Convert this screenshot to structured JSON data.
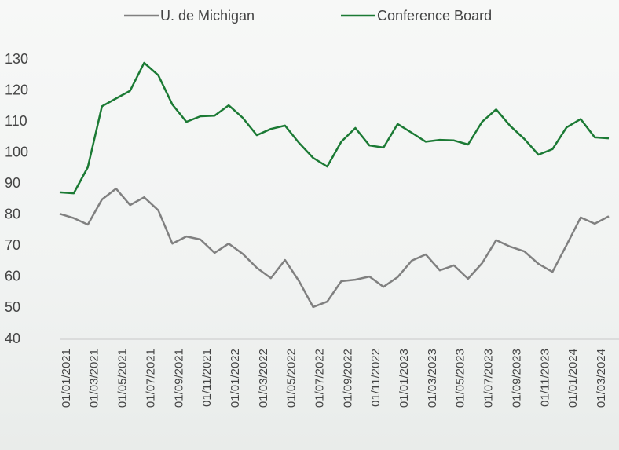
{
  "chart_data": {
    "type": "line",
    "categories": [
      null,
      "01/01/2021",
      null,
      "01/03/2021",
      null,
      "01/05/2021",
      null,
      "01/07/2021",
      null,
      "01/09/2021",
      null,
      "01/11/2021",
      null,
      "01/01/2022",
      null,
      "01/03/2022",
      null,
      "01/05/2022",
      null,
      "01/07/2022",
      null,
      "01/09/2022",
      null,
      "01/11/2022",
      null,
      "01/01/2023",
      null,
      "01/03/2023",
      null,
      "01/05/2023",
      null,
      "01/07/2023",
      null,
      "01/09/2023",
      null,
      "01/11/2023",
      null,
      "01/01/2024",
      null,
      "01/03/2024"
    ],
    "series": [
      {
        "name": "U. de Michigan",
        "color": "#808080",
        "values": [
          80.4,
          79,
          76.9,
          85,
          88.5,
          83.2,
          85.7,
          81.5,
          70.8,
          73.1,
          72.1,
          67.8,
          70.8,
          67.5,
          63,
          59.7,
          65.5,
          58.7,
          50.4,
          52.1,
          58.7,
          59.2,
          60.2,
          56.9,
          60,
          65.3,
          67.3,
          62.2,
          63.8,
          59.5,
          64.5,
          71.9,
          69.8,
          68.3,
          64.3,
          61.7,
          70.3,
          79.2,
          77.2,
          79.6
        ]
      },
      {
        "name": "Conference Board",
        "color": "#1b7a34",
        "values": [
          87.3,
          87,
          95.4,
          115,
          117.5,
          120,
          129,
          125,
          115.6,
          110,
          111.8,
          112,
          115.3,
          111.3,
          105.7,
          107.7,
          108.8,
          103.2,
          98.4,
          95.6,
          103.6,
          108,
          102.4,
          101.7,
          109.3,
          106.5,
          103.6,
          104.2,
          104,
          102.7,
          110,
          114,
          108.7,
          104.5,
          99.4,
          101.2,
          108.2,
          110.9,
          105,
          104.7
        ]
      }
    ],
    "ylim": [
      40,
      130
    ],
    "yticks": [
      40,
      50,
      60,
      70,
      80,
      90,
      100,
      110,
      120,
      130
    ],
    "legend": "top",
    "grid": false
  }
}
